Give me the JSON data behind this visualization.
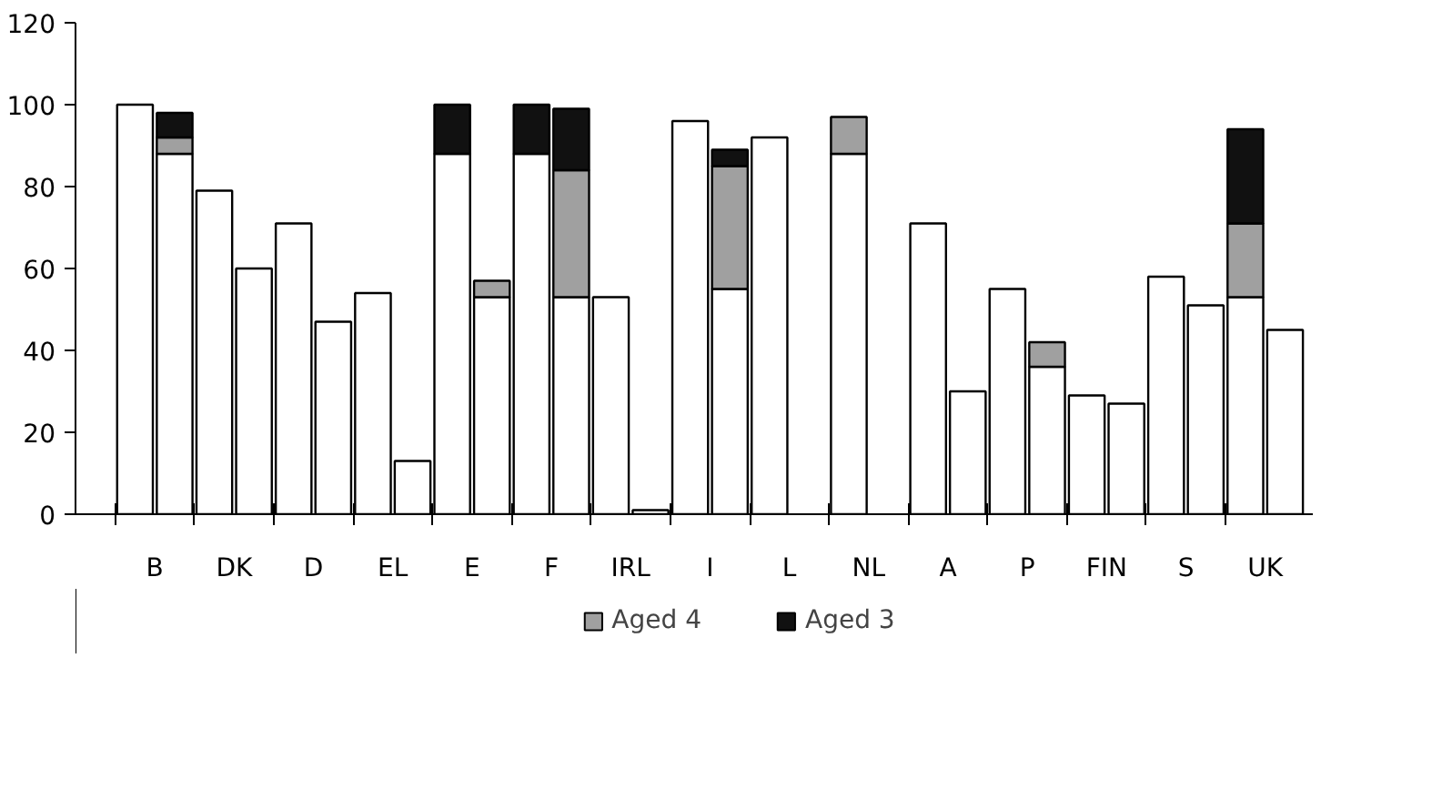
{
  "chart_data": {
    "type": "bar",
    "stacked": true,
    "categories": [
      "B",
      null,
      "DK",
      null,
      "D",
      null,
      "EL",
      null,
      "E",
      null,
      "F",
      null,
      "IRL",
      null,
      "I",
      null,
      "L",
      null,
      "NL",
      null,
      "A",
      null,
      "P",
      null,
      "FIN",
      null,
      "S",
      null,
      "UK",
      null
    ],
    "series": [
      {
        "color": "#ffffff",
        "values": [
          100,
          88,
          79,
          60,
          71,
          47,
          54,
          13,
          88,
          53,
          88,
          53,
          53,
          1,
          96,
          55,
          92,
          null,
          88,
          null,
          71,
          30,
          55,
          36,
          29,
          27,
          58,
          51,
          53,
          45
        ]
      },
      {
        "name": "Aged 4",
        "color": "#a0a0a0",
        "values": [
          null,
          4,
          null,
          null,
          null,
          null,
          null,
          null,
          null,
          4,
          null,
          31,
          null,
          null,
          null,
          30,
          null,
          null,
          9,
          null,
          null,
          null,
          null,
          6,
          null,
          null,
          null,
          null,
          18,
          null
        ]
      },
      {
        "name": "Aged 3",
        "color": "#111111",
        "values": [
          null,
          6,
          null,
          null,
          null,
          null,
          null,
          null,
          12,
          null,
          12,
          15,
          null,
          null,
          null,
          4,
          null,
          null,
          null,
          null,
          null,
          null,
          null,
          null,
          null,
          null,
          null,
          null,
          23,
          null
        ]
      }
    ],
    "ylim": [
      0,
      120
    ],
    "yticks": [
      0,
      20,
      40,
      60,
      80,
      100,
      120
    ],
    "legend": "bottom"
  }
}
